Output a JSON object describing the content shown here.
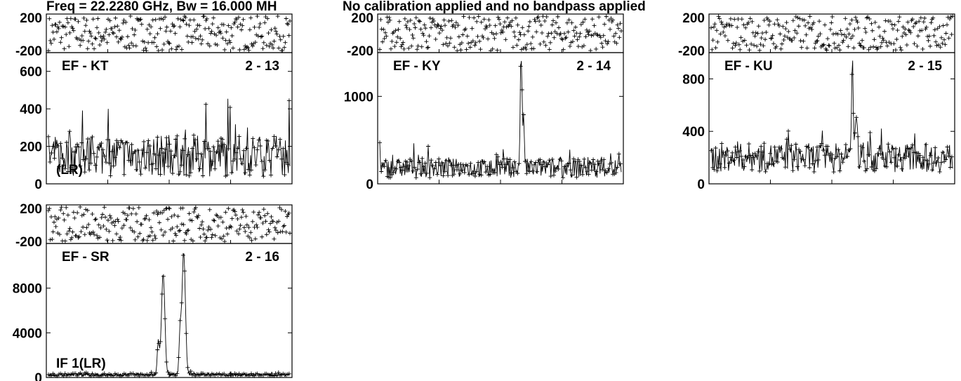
{
  "header": {
    "freq_text": "Freq = 22.2280 GHz, Bw = 16.000 MH",
    "cal_text": "No calibration applied and no bandpass applied"
  },
  "chart_data": [
    {
      "type": "scatter",
      "baseline": "EF - KT",
      "antennas": "2 - 13",
      "if_label": "(LR)",
      "phase": {
        "ylim": [
          -200,
          200
        ],
        "ticks": [
          "200",
          "-200"
        ]
      },
      "amplitude": {
        "ylim": [
          0,
          700
        ],
        "ticks": [
          "600",
          "400",
          "200",
          "0"
        ],
        "tick_values": [
          600,
          400,
          200,
          0
        ],
        "base": 150,
        "noise": 110,
        "peaks": []
      }
    },
    {
      "type": "scatter",
      "baseline": "EF - KY",
      "antennas": "2 - 14",
      "if_label": "",
      "phase": {
        "ylim": [
          -200,
          200
        ],
        "ticks": [
          "200",
          "-200"
        ]
      },
      "amplitude": {
        "ylim": [
          0,
          1500
        ],
        "ticks": [
          "1000",
          "0"
        ],
        "tick_values": [
          1000,
          0
        ],
        "base": 180,
        "noise": 110,
        "peaks": [
          {
            "center": 0.585,
            "width": 0.005,
            "height": 1250
          },
          {
            "center": 0.595,
            "width": 0.006,
            "height": 500
          }
        ]
      }
    },
    {
      "type": "scatter",
      "baseline": "EF - KU",
      "antennas": "2 - 15",
      "if_label": "",
      "phase": {
        "ylim": [
          -200,
          200
        ],
        "ticks": [
          "200",
          "-200"
        ]
      },
      "amplitude": {
        "ylim": [
          0,
          1000
        ],
        "ticks": [
          "800",
          "400",
          "0"
        ],
        "tick_values": [
          800,
          400,
          0
        ],
        "base": 200,
        "noise": 110,
        "peaks": [
          {
            "center": 0.585,
            "width": 0.005,
            "height": 750
          },
          {
            "center": 0.6,
            "width": 0.006,
            "height": 350
          }
        ]
      }
    },
    {
      "type": "scatter",
      "baseline": "EF - SR",
      "antennas": "2 - 16",
      "if_label": "IF 1(LR)",
      "phase": {
        "ylim": [
          -200,
          200
        ],
        "ticks": [
          "200",
          "-200"
        ]
      },
      "amplitude": {
        "ylim": [
          0,
          12000
        ],
        "ticks": [
          "8000",
          "4000",
          "0"
        ],
        "tick_values": [
          8000,
          4000,
          0
        ],
        "base": 250,
        "noise": 120,
        "peaks": [
          {
            "center": 0.475,
            "width": 0.01,
            "height": 9000
          },
          {
            "center": 0.56,
            "width": 0.01,
            "height": 11000
          },
          {
            "center": 0.455,
            "width": 0.006,
            "height": 3000
          },
          {
            "center": 0.545,
            "width": 0.006,
            "height": 3500
          }
        ]
      }
    }
  ]
}
